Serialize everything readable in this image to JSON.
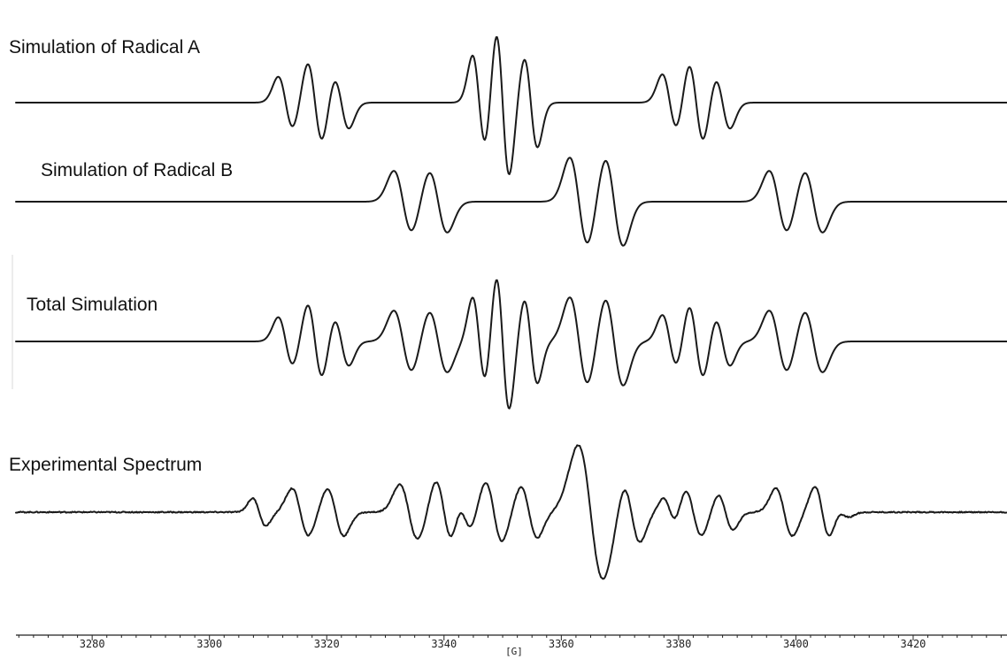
{
  "chart_data": {
    "type": "line",
    "xlabel": "[G]",
    "xlim": [
      3267,
      3436
    ],
    "x_ticks": [
      3280,
      3300,
      3320,
      3340,
      3360,
      3380,
      3400,
      3420
    ],
    "minor_tick_step": 2.5,
    "grid": false,
    "series": [
      {
        "name": "Simulation of Radical A",
        "baseline_x": [
          3267,
          3436
        ],
        "lines": [
          {
            "x": 3313.0,
            "a": 0.55,
            "w": 1.8
          },
          {
            "x": 3318.0,
            "a": 0.85,
            "w": 1.8
          },
          {
            "x": 3322.5,
            "a": 0.55,
            "w": 1.8
          },
          {
            "x": 3346.0,
            "a": 1.0,
            "w": 1.6
          },
          {
            "x": 3350.0,
            "a": 1.55,
            "w": 1.6
          },
          {
            "x": 3354.8,
            "a": 0.95,
            "w": 1.6
          },
          {
            "x": 3378.5,
            "a": 0.6,
            "w": 1.8
          },
          {
            "x": 3383.0,
            "a": 0.85,
            "w": 1.8
          },
          {
            "x": 3387.5,
            "a": 0.55,
            "w": 1.8
          }
        ]
      },
      {
        "name": "Simulation of Radical B",
        "baseline_x": [
          3267,
          3436
        ],
        "lines": [
          {
            "x": 3333.0,
            "a": 0.7,
            "w": 2.2
          },
          {
            "x": 3339.0,
            "a": 0.7,
            "w": 2.2
          },
          {
            "x": 3363.0,
            "a": 1.0,
            "w": 2.2
          },
          {
            "x": 3369.0,
            "a": 1.0,
            "w": 2.2
          },
          {
            "x": 3397.0,
            "a": 0.7,
            "w": 2.2
          },
          {
            "x": 3403.0,
            "a": 0.7,
            "w": 2.2
          }
        ]
      },
      {
        "name": "Total Simulation",
        "baseline_x": [
          3267,
          3436
        ],
        "sum_of": [
          "Simulation of Radical A",
          "Simulation of Radical B"
        ]
      },
      {
        "name": "Experimental Spectrum",
        "baseline_x": [
          3267,
          3436
        ],
        "noisy": true,
        "lines": [
          {
            "x": 3308.5,
            "a": 0.35,
            "w": 1.6
          },
          {
            "x": 3315.5,
            "a": 0.6,
            "w": 2.0
          },
          {
            "x": 3321.5,
            "a": 0.6,
            "w": 2.0
          },
          {
            "x": 3334.0,
            "a": 0.7,
            "w": 2.2
          },
          {
            "x": 3340.0,
            "a": 0.8,
            "w": 2.0
          },
          {
            "x": 3343.5,
            "a": 0.4,
            "w": 1.6
          },
          {
            "x": 3348.5,
            "a": 0.75,
            "w": 2.0
          },
          {
            "x": 3354.5,
            "a": 0.65,
            "w": 2.0
          },
          {
            "x": 3365.0,
            "a": 1.7,
            "w": 3.0
          },
          {
            "x": 3372.0,
            "a": 0.75,
            "w": 2.0
          },
          {
            "x": 3378.5,
            "a": 0.35,
            "w": 1.6
          },
          {
            "x": 3382.5,
            "a": 0.6,
            "w": 2.0
          },
          {
            "x": 3388.0,
            "a": 0.45,
            "w": 1.8
          },
          {
            "x": 3398.0,
            "a": 0.6,
            "w": 2.0
          },
          {
            "x": 3404.5,
            "a": 0.65,
            "w": 1.8
          },
          {
            "x": 3408.0,
            "a": 0.12,
            "w": 1.6
          }
        ]
      }
    ]
  }
}
